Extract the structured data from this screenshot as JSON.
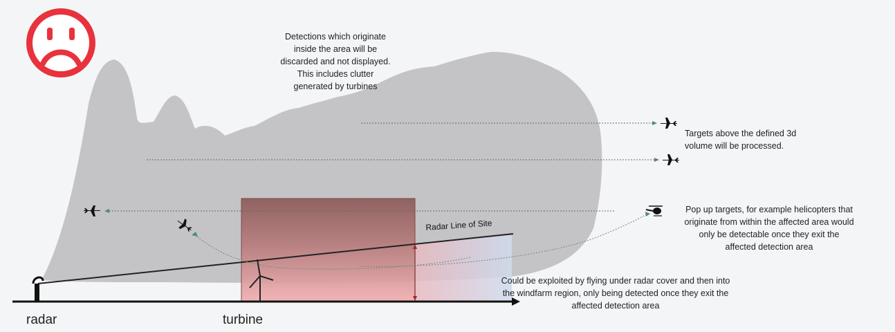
{
  "notes": {
    "detections_inside": [
      "Detections which originate",
      "inside the area will be",
      "discarded and not displayed.",
      "This includes clutter",
      "generated by turbines"
    ],
    "targets_above": [
      "Targets above the defined 3d",
      "volume will be processed."
    ],
    "pop_up": [
      "Pop up targets, for example helicopters that",
      "originate from within the affected area would",
      "only be detectable once they exit the",
      "affected detection area"
    ],
    "exploited": [
      "Could be exploited by flying under radar cover and then into",
      "the windfarm region, only being detected once they exit the",
      "affected detection area"
    ]
  },
  "labels": {
    "radar_line": "Radar Line of Site",
    "radar": "radar",
    "turbine": "turbine"
  },
  "icons": [
    "sad-face-icon",
    "airplane-icon",
    "helicopter-icon",
    "wind-turbine-icon",
    "radar-antenna-icon"
  ],
  "colors": {
    "sad_face": "#e8323c",
    "cloud": "#c3c3c5",
    "turbine_box_top": "#8e5b59",
    "turbine_box_bottom": "#f2aeb0",
    "shadow_region": "#c9d3e3"
  }
}
